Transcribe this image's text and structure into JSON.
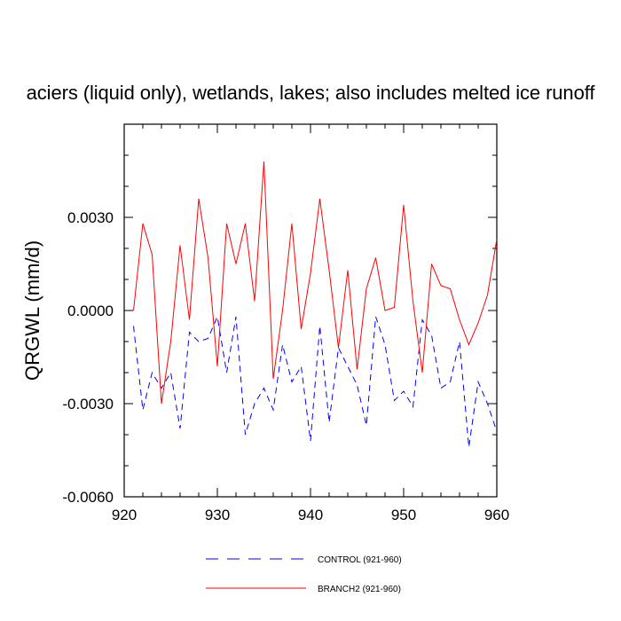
{
  "chart_data": {
    "type": "line",
    "title": "aciers (liquid only), wetlands, lakes; also includes melted ice runoff",
    "xlabel": "",
    "ylabel": "QRGWL  (mm/d)",
    "xlim": [
      920,
      960
    ],
    "ylim": [
      -0.006,
      0.006
    ],
    "x_ticks": [
      920,
      930,
      940,
      950,
      960
    ],
    "x_tick_labels": [
      "920",
      "930",
      "940",
      "950",
      "960"
    ],
    "y_ticks": [
      -0.006,
      -0.003,
      0.0,
      0.003
    ],
    "y_tick_labels": [
      "-0.0060",
      "-0.0030",
      "0.0000",
      "0.0030"
    ],
    "x": [
      921,
      922,
      923,
      924,
      925,
      926,
      927,
      928,
      929,
      930,
      931,
      932,
      933,
      934,
      935,
      936,
      937,
      938,
      939,
      940,
      941,
      942,
      943,
      944,
      945,
      946,
      947,
      948,
      949,
      950,
      951,
      952,
      953,
      954,
      955,
      956,
      957,
      958,
      959,
      960
    ],
    "series": [
      {
        "name": "CONTROL (921-960)",
        "color": "#0000ff",
        "dash": "dashed",
        "values": [
          -0.0005,
          -0.0032,
          -0.002,
          -0.0025,
          -0.002,
          -0.0038,
          -0.0007,
          -0.001,
          -0.0009,
          -0.0002,
          -0.002,
          -0.0002,
          -0.004,
          -0.003,
          -0.0025,
          -0.0032,
          -0.0011,
          -0.0023,
          -0.0018,
          -0.0042,
          -0.0005,
          -0.0036,
          -0.0012,
          -0.0018,
          -0.0024,
          -0.0037,
          -0.0002,
          -0.0011,
          -0.0029,
          -0.0026,
          -0.0031,
          -0.0003,
          -0.0008,
          -0.0025,
          -0.0023,
          -0.001,
          -0.0044,
          -0.0023,
          -0.003,
          -0.0039
        ]
      },
      {
        "name": "BRANCH2 (921-960)",
        "color": "#ff0000",
        "dash": "solid",
        "values": [
          0.0,
          0.0028,
          0.0018,
          -0.003,
          -0.001,
          0.0021,
          -0.0003,
          0.0036,
          0.0017,
          -0.0018,
          0.0028,
          0.0015,
          0.0028,
          0.0003,
          0.0048,
          -0.0022,
          0.0,
          0.0028,
          -0.0006,
          0.0012,
          0.0036,
          0.0013,
          -0.0012,
          0.0013,
          -0.0019,
          0.0007,
          0.0017,
          0.0,
          0.0001,
          0.0034,
          0.0003,
          -0.002,
          0.0015,
          0.0008,
          0.0007,
          -0.0003,
          -0.0011,
          -0.0004,
          0.0005,
          0.0023
        ]
      }
    ],
    "grid": false,
    "legend": "bottom"
  }
}
